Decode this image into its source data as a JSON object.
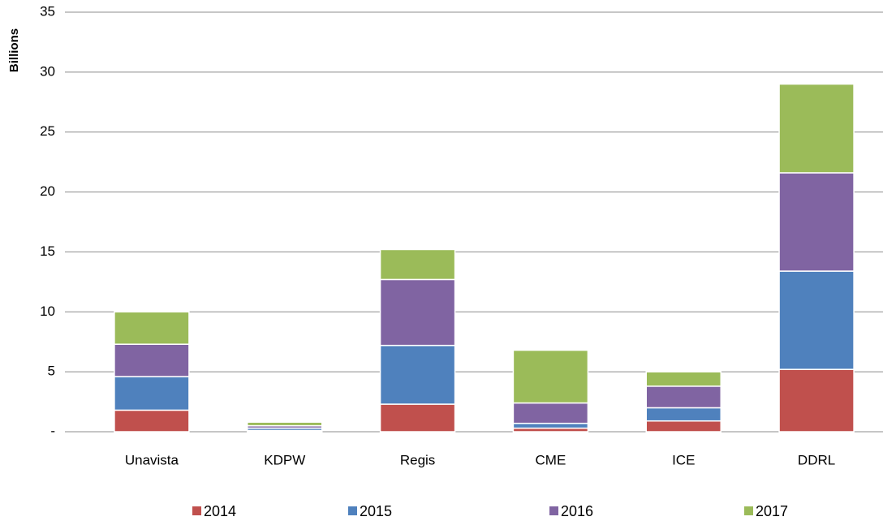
{
  "chart_data": {
    "type": "stacked_bar",
    "y_label": "Billions",
    "categories": [
      "Unavista",
      "KDPW",
      "Regis",
      "CME",
      "ICE",
      "DDRL"
    ],
    "series": [
      {
        "name": "2014",
        "color": "#c0504d",
        "values": [
          1.8,
          0.1,
          2.3,
          0.3,
          0.9,
          5.2
        ]
      },
      {
        "name": "2015",
        "color": "#4f81bd",
        "values": [
          2.8,
          0.2,
          4.9,
          0.4,
          1.1,
          8.2
        ]
      },
      {
        "name": "2016",
        "color": "#8064a2",
        "values": [
          2.7,
          0.2,
          5.5,
          1.7,
          1.8,
          8.2
        ]
      },
      {
        "name": "2017",
        "color": "#9bbb59",
        "values": [
          2.7,
          0.3,
          2.5,
          4.4,
          1.2,
          7.4
        ]
      }
    ],
    "ylim": [
      0,
      35
    ],
    "yticks": [
      {
        "value": 0,
        "label": "-"
      },
      5,
      10,
      15,
      20,
      25,
      30,
      35
    ],
    "grid": true,
    "legend": "bottom"
  }
}
